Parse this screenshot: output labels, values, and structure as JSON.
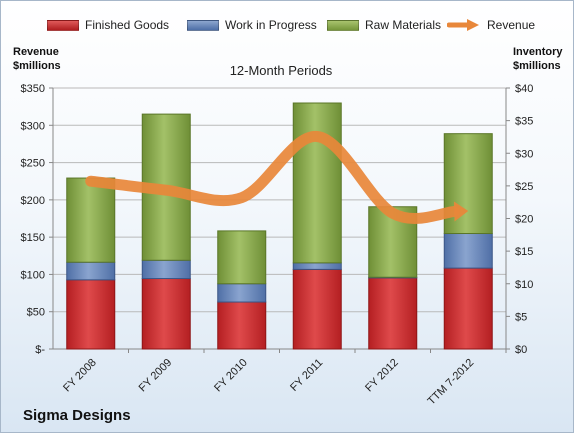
{
  "chart_data": {
    "type": "bar",
    "title": "12-Month Periods",
    "categories": [
      "FY 2008",
      "FY 2009",
      "FY 2010",
      "FY 2011",
      "FY 2012",
      "TTM 7-2012"
    ],
    "series": [
      {
        "name": "Finished Goods",
        "axis": "right",
        "stacked": true,
        "color": "#c0282a",
        "values": [
          10.6,
          10.8,
          7.2,
          12.2,
          10.9,
          12.4
        ]
      },
      {
        "name": "Work in Progress",
        "axis": "right",
        "stacked": true,
        "color": "#5c7eb5",
        "values": [
          2.7,
          2.8,
          2.8,
          1.0,
          0.1,
          5.3
        ]
      },
      {
        "name": "Raw Materials",
        "axis": "right",
        "stacked": true,
        "color": "#86a845",
        "values": [
          12.9,
          22.4,
          8.1,
          24.5,
          10.8,
          15.3
        ]
      },
      {
        "name": "Revenue",
        "axis": "left",
        "type": "line",
        "color": "#e8873a",
        "values": [
          225,
          213,
          203,
          285,
          182,
          185
        ]
      }
    ],
    "y_left": {
      "label": "Revenue $millions",
      "ylim": [
        0,
        350
      ],
      "ticks": [
        "$-",
        "$50",
        "$100",
        "$150",
        "$200",
        "$250",
        "$300",
        "$350"
      ]
    },
    "y_right": {
      "label": "Inventory $millions",
      "ylim": [
        0,
        40
      ],
      "ticks": [
        "$0",
        "$5",
        "$10",
        "$15",
        "$20",
        "$25",
        "$30",
        "$35",
        "$40"
      ]
    },
    "grid": true,
    "legend": "top"
  },
  "legend": {
    "finished_goods": "Finished Goods",
    "work_in_progress": "Work in Progress",
    "raw_materials": "Raw Materials",
    "revenue": "Revenue"
  },
  "left_axis_title": [
    "Revenue",
    "$millions"
  ],
  "right_axis_title": [
    "Inventory",
    "$millions"
  ],
  "company": "Sigma Designs"
}
